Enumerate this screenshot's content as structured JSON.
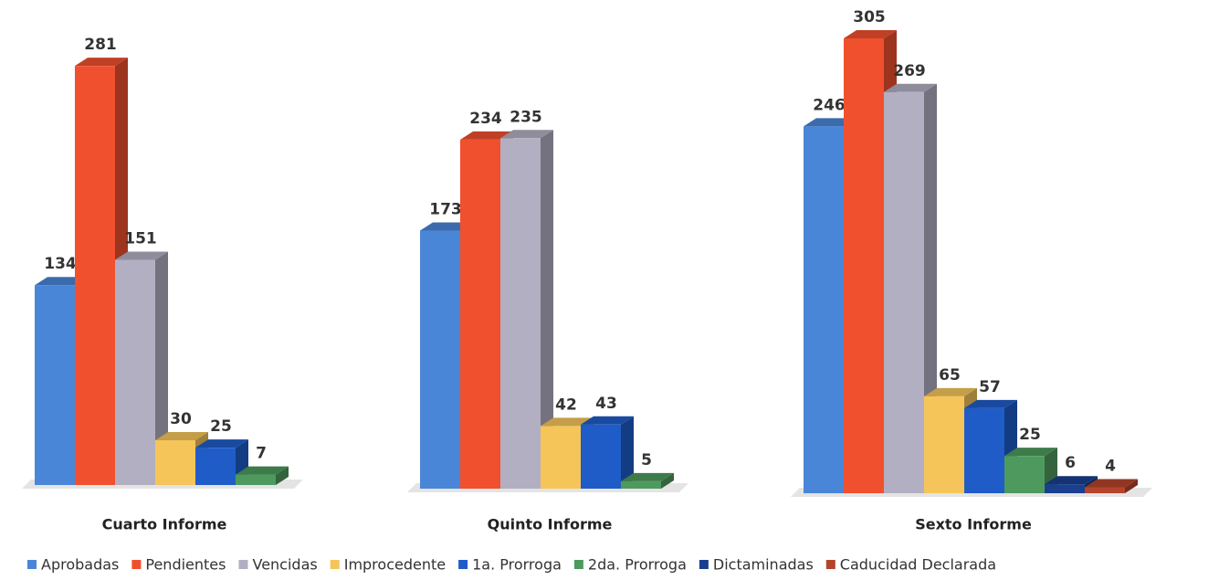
{
  "chart_data": {
    "type": "bar3d",
    "categories": [
      "Cuarto Informe",
      "Quinto Informe",
      "Sexto Informe"
    ],
    "series": [
      {
        "name": "Aprobadas",
        "color": "#4a86d8",
        "values": [
          134,
          173,
          246
        ]
      },
      {
        "name": "Pendientes",
        "color": "#f0502e",
        "values": [
          281,
          234,
          305
        ]
      },
      {
        "name": "Vencidas",
        "color": "#b3afc2",
        "values": [
          151,
          235,
          269
        ]
      },
      {
        "name": "Improcedente",
        "color": "#f5c55a",
        "values": [
          30,
          42,
          65
        ]
      },
      {
        "name": "1a. Prorroga",
        "color": "#1f5cc8",
        "values": [
          25,
          43,
          57
        ]
      },
      {
        "name": "2da. Prorroga",
        "color": "#4e9a5e",
        "values": [
          7,
          5,
          25
        ]
      },
      {
        "name": "Dictaminadas",
        "color": "#1a3f8f",
        "values": [
          null,
          null,
          6
        ]
      },
      {
        "name": "Caducidad Declarada",
        "color": "#b5442c",
        "values": [
          null,
          null,
          4
        ]
      }
    ]
  }
}
